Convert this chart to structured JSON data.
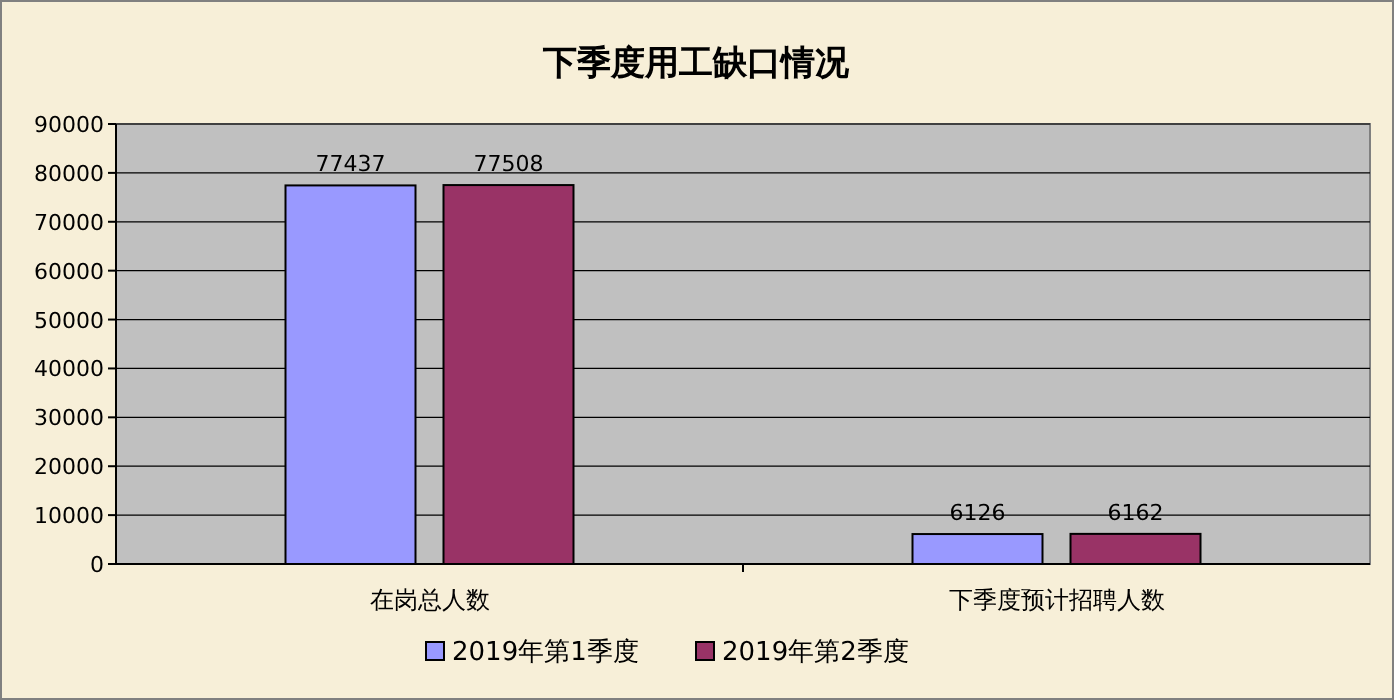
{
  "chart_data": {
    "type": "bar",
    "title": "下季度用工缺口情况",
    "categories": [
      "在岗总人数",
      "下季度预计招聘人数"
    ],
    "series": [
      {
        "name": "2019年第1季度",
        "color": "#9999ff",
        "values": [
          77437,
          6126
        ]
      },
      {
        "name": "2019年第2季度",
        "color": "#993366",
        "values": [
          77508,
          6162
        ]
      }
    ],
    "ylim": [
      0,
      90000
    ],
    "yticks": [
      0,
      10000,
      20000,
      30000,
      40000,
      50000,
      60000,
      70000,
      80000,
      90000
    ],
    "grid": "y",
    "legend": "bottom",
    "data_labels": true
  }
}
